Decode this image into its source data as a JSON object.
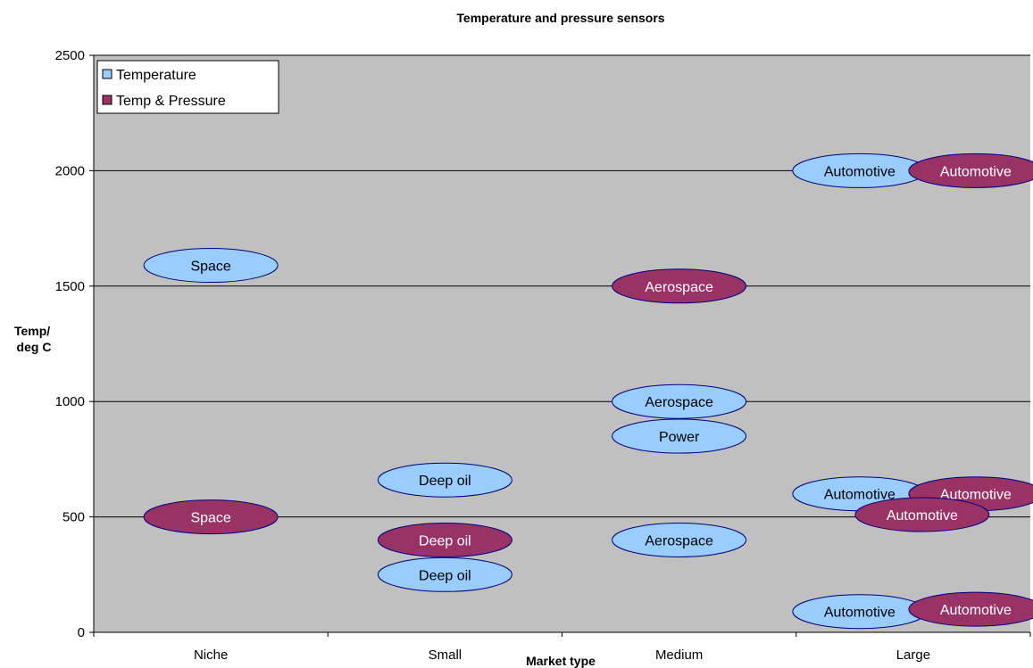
{
  "chart_data": {
    "type": "scatter",
    "title": "Temperature and pressure sensors",
    "xlabel": "Market type",
    "ylabel": "Temp/\ndeg C",
    "categories": [
      "Niche",
      "Small",
      "Medium",
      "Large"
    ],
    "ylim": [
      0,
      2500
    ],
    "yticks": [
      0,
      500,
      1000,
      1500,
      2000,
      2500
    ],
    "grid": "horizontal",
    "legend_position": "top-left",
    "colors": {
      "plot_background": "#c0c0c0",
      "temperature": "#99ccff",
      "temp_pressure": "#993366"
    },
    "series": [
      {
        "name": "Temperature",
        "points": [
          {
            "category": "Niche",
            "y": 1590,
            "label": "Space"
          },
          {
            "category": "Small",
            "y": 660,
            "label": "Deep oil"
          },
          {
            "category": "Small",
            "y": 250,
            "label": "Deep oil"
          },
          {
            "category": "Medium",
            "y": 1000,
            "label": "Aerospace"
          },
          {
            "category": "Medium",
            "y": 850,
            "label": "Power"
          },
          {
            "category": "Medium",
            "y": 400,
            "label": "Aerospace"
          },
          {
            "category": "Large",
            "y": 2000,
            "label": "Automotive"
          },
          {
            "category": "Large",
            "y": 600,
            "label": "Automotive"
          },
          {
            "category": "Large",
            "y": 90,
            "label": "Automotive"
          }
        ]
      },
      {
        "name": "Temp & Pressure",
        "points": [
          {
            "category": "Niche",
            "y": 500,
            "label": "Space"
          },
          {
            "category": "Small",
            "y": 400,
            "label": "Deep oil"
          },
          {
            "category": "Medium",
            "y": 1500,
            "label": "Aerospace"
          },
          {
            "category": "Large",
            "y": 2000,
            "label": "Automotive"
          },
          {
            "category": "Large",
            "y": 600,
            "label": "Automotive"
          },
          {
            "category": "Large",
            "y": 510,
            "label": "Automotive"
          },
          {
            "category": "Large",
            "y": 100,
            "label": "Automotive"
          }
        ]
      }
    ]
  }
}
